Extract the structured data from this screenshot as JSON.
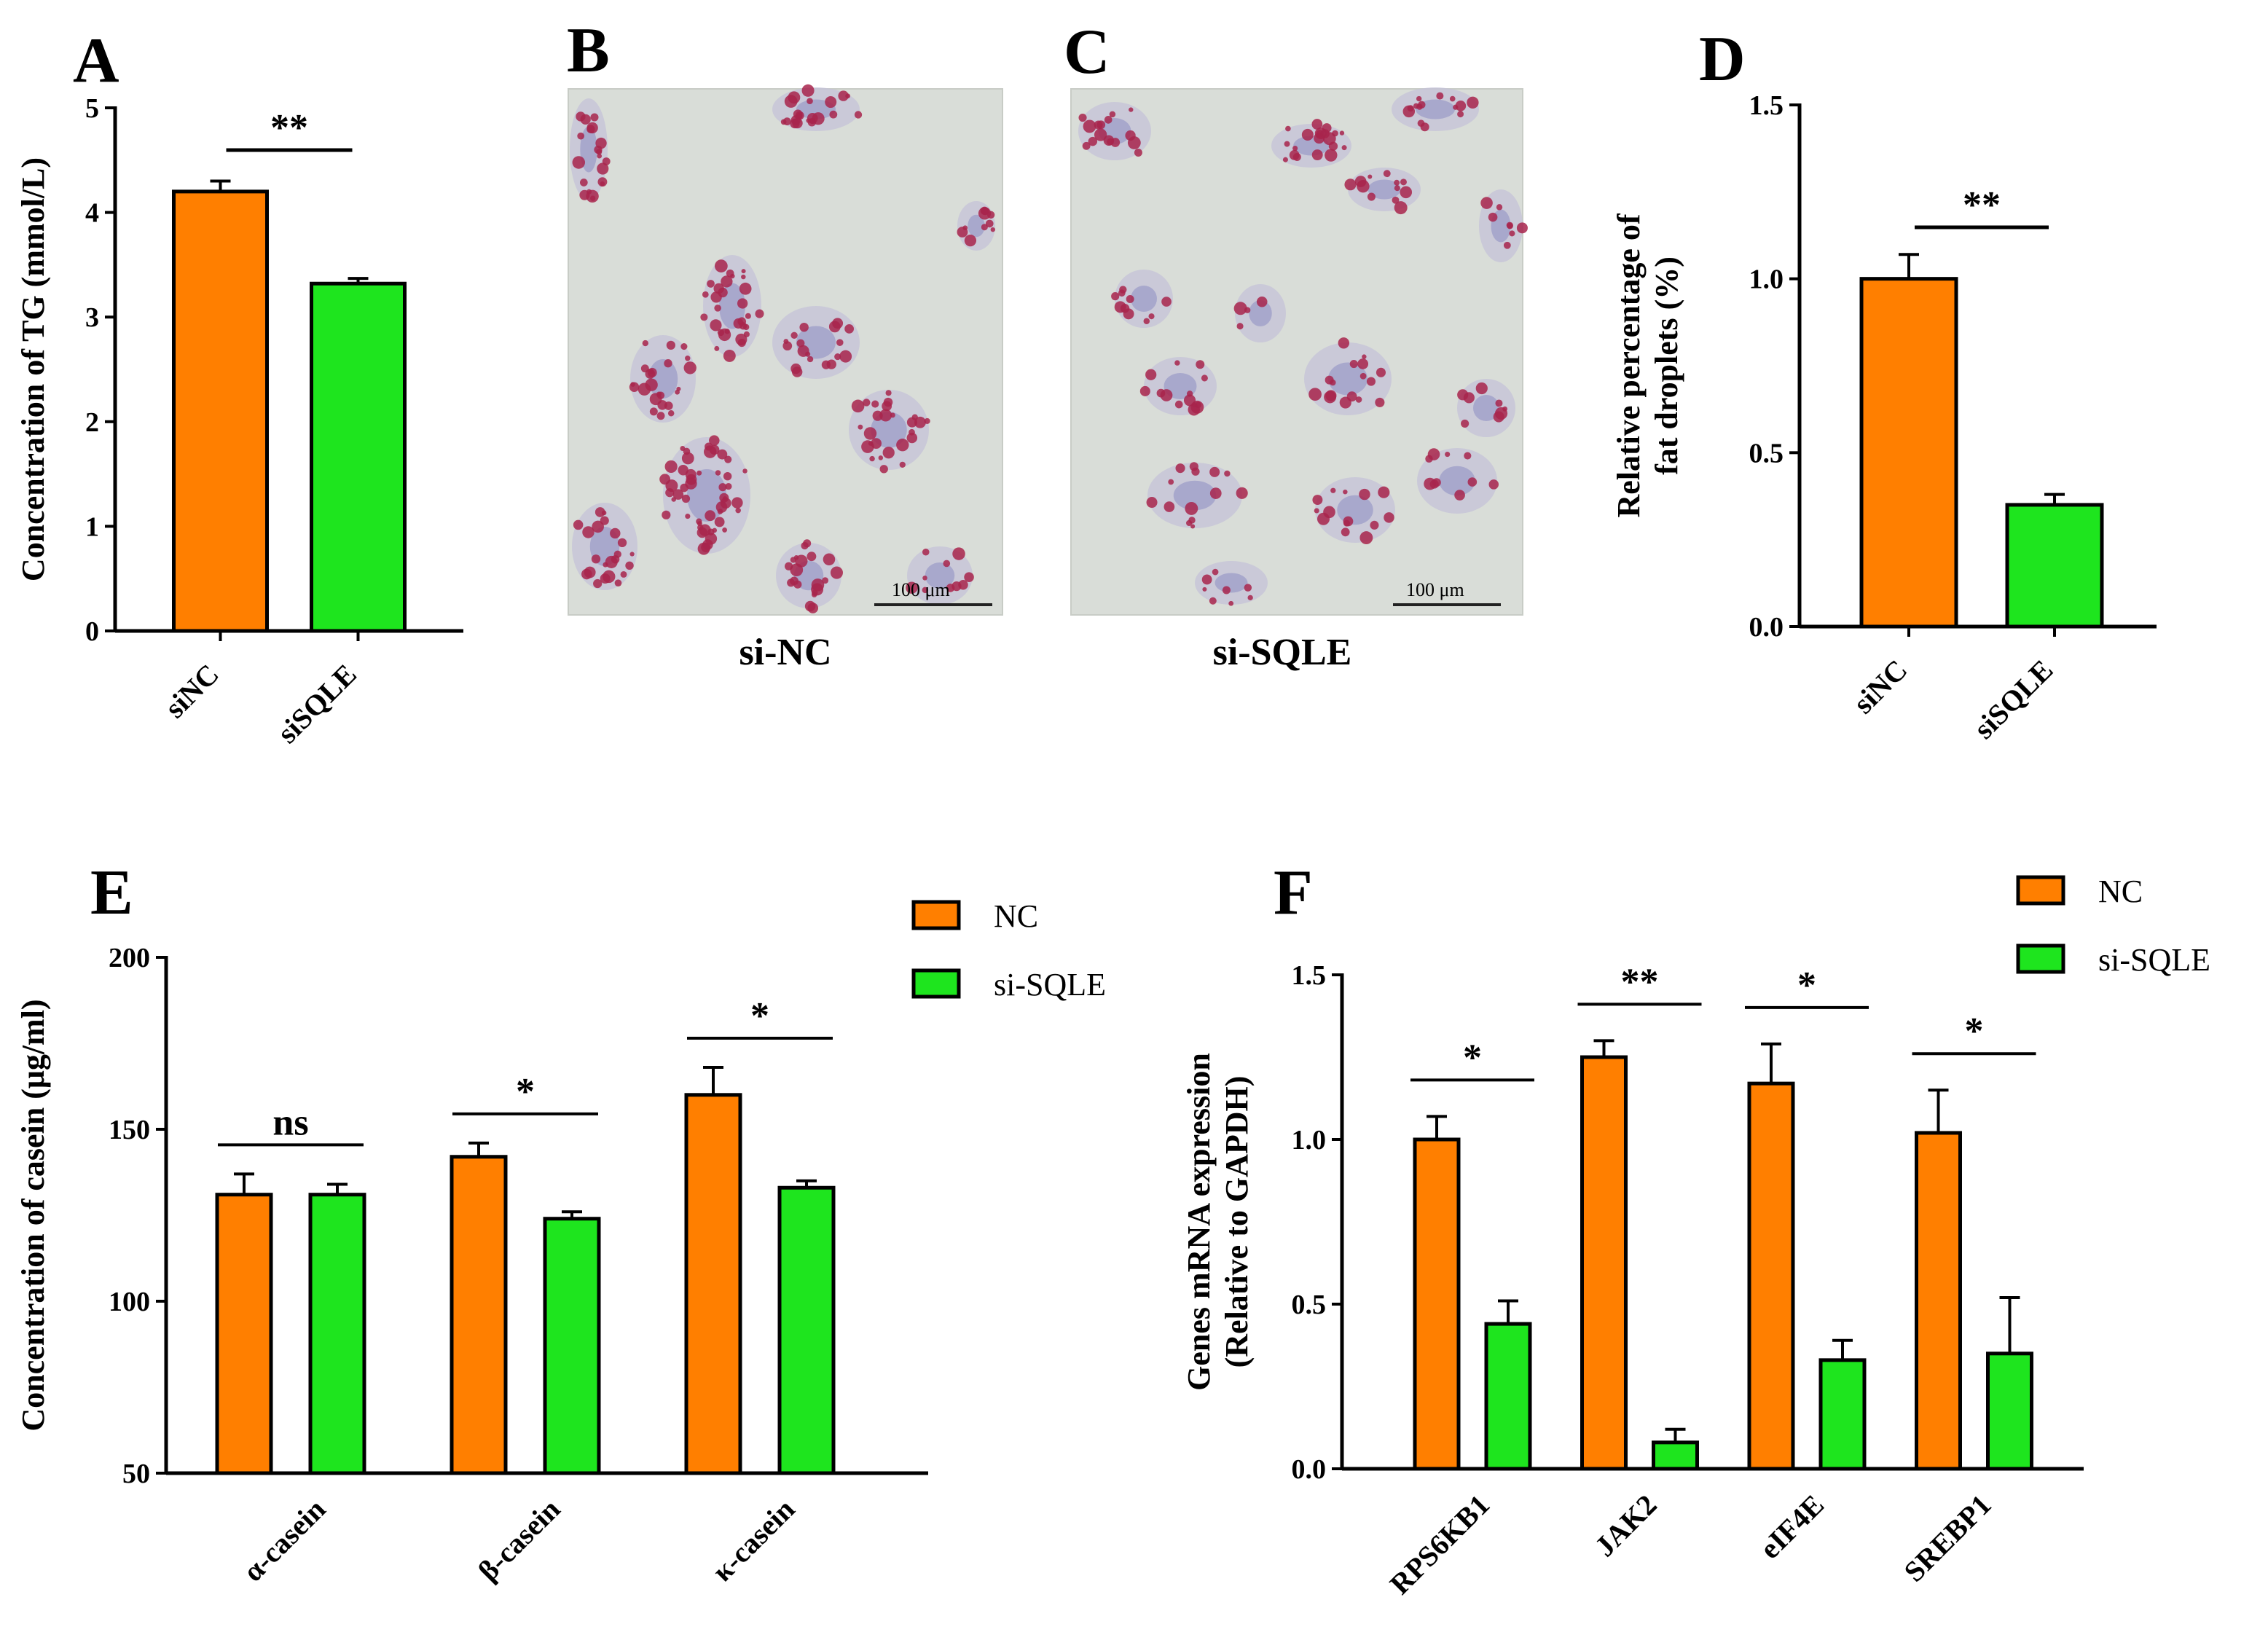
{
  "panels": {
    "A": "A",
    "B": "B",
    "C": "C",
    "D": "D",
    "E": "E",
    "F": "F"
  },
  "colors": {
    "orange": "#FF7F00",
    "green": "#1EE51E",
    "micro_bg": "#D9DDD8",
    "stain": "#A8244C",
    "nucleus": "#9A9AC8"
  },
  "micrographs": {
    "B": {
      "caption": "si-NC",
      "scale_bar": "100 μm"
    },
    "C": {
      "caption": "si-SQLE",
      "scale_bar": "100 μm"
    }
  },
  "chart_data": [
    {
      "panel": "A",
      "type": "bar",
      "categories": [
        "siNC",
        "siSQLE"
      ],
      "values": [
        4.2,
        3.32
      ],
      "errors": [
        0.1,
        0.05
      ],
      "colors": [
        "#FF7F00",
        "#1EE51E"
      ],
      "ylabel": "Concentration of TG (mmol/L)",
      "ylim": [
        0,
        5
      ],
      "yticks": [
        "0",
        "1",
        "2",
        "3",
        "4",
        "5"
      ],
      "significance": [
        {
          "label": "**",
          "between": [
            "siNC",
            "siSQLE"
          ]
        }
      ]
    },
    {
      "panel": "D",
      "type": "bar",
      "categories": [
        "siNC",
        "siSQLE"
      ],
      "values": [
        1.0,
        0.35
      ],
      "errors": [
        0.07,
        0.03
      ],
      "colors": [
        "#FF7F00",
        "#1EE51E"
      ],
      "ylabel_lines": [
        "Relative percentage of",
        "fat droplets (%)"
      ],
      "ylim": [
        0,
        1.5
      ],
      "yticks": [
        "0.0",
        "0.5",
        "1.0",
        "1.5"
      ],
      "significance": [
        {
          "label": "**",
          "between": [
            "siNC",
            "siSQLE"
          ]
        }
      ]
    },
    {
      "panel": "E",
      "type": "bar",
      "categories": [
        "α-casein",
        "β-casein",
        "κ-casein"
      ],
      "series": [
        {
          "name": "NC",
          "color": "#FF7F00",
          "values": [
            131,
            142,
            160
          ],
          "errors": [
            6,
            4,
            8
          ]
        },
        {
          "name": "si-SQLE",
          "color": "#1EE51E",
          "values": [
            131,
            124,
            133
          ],
          "errors": [
            3,
            2,
            2
          ]
        }
      ],
      "ylabel": "Concentration of casein (μg/ml)",
      "ylim": [
        50,
        200
      ],
      "yticks": [
        "50",
        "100",
        "150",
        "200"
      ],
      "significance": [
        "ns",
        "*",
        "*"
      ],
      "legend": "top-right"
    },
    {
      "panel": "F",
      "type": "bar",
      "categories": [
        "RPS6KB1",
        "JAK2",
        "eIF4E",
        "SREBP1"
      ],
      "series": [
        {
          "name": "NC",
          "color": "#FF7F00",
          "values": [
            1.0,
            1.25,
            1.17,
            1.02
          ],
          "errors": [
            0.07,
            0.05,
            0.12,
            0.13
          ]
        },
        {
          "name": "si-SQLE",
          "color": "#1EE51E",
          "values": [
            0.44,
            0.08,
            0.33,
            0.35
          ],
          "errors": [
            0.07,
            0.04,
            0.06,
            0.17
          ]
        }
      ],
      "ylabel_lines": [
        "Genes mRNA expression",
        "(Relative to GAPDH)"
      ],
      "ylim": [
        0,
        1.5
      ],
      "yticks": [
        "0.0",
        "0.5",
        "1.0",
        "1.5"
      ],
      "significance": [
        "*",
        "**",
        "*",
        "*"
      ],
      "legend": "top-right"
    }
  ]
}
